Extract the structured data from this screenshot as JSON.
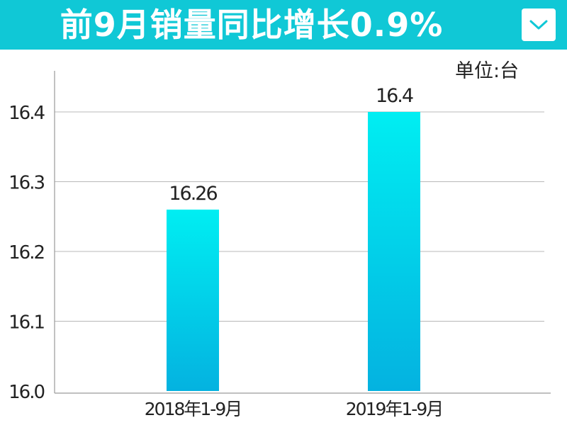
{
  "header": {
    "title": "前9月销量同比增长0.9%",
    "dropdown_icon": "chevron-down-icon",
    "background_color": "#10c8d6"
  },
  "chart_data": {
    "type": "bar",
    "title": "前9月销量同比增长0.9%",
    "unit_label": "单位:台",
    "categories": [
      "2018年1-9月",
      "2019年1-9月"
    ],
    "values": [
      16.26,
      16.4
    ],
    "value_labels": [
      "16.26",
      "16.4"
    ],
    "ylim": [
      16.0,
      16.45
    ],
    "yticks": [
      16.0,
      16.1,
      16.2,
      16.3,
      16.4
    ],
    "ytick_labels": [
      "16.0",
      "16.1",
      "16.2",
      "16.3",
      "16.4"
    ],
    "grid": true,
    "bar_color_top": "#00eef2",
    "bar_color_bottom": "#04b2e0"
  }
}
